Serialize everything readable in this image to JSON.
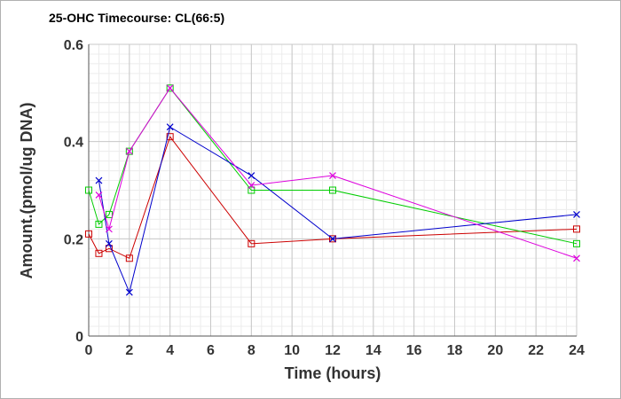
{
  "chart_data": {
    "type": "line",
    "title": "25-OHC Timecourse: CL(66:5)",
    "xlabel": "Time (hours)",
    "ylabel": "Amount.(pmol/ug DNA)",
    "xlim": [
      0,
      24
    ],
    "ylim": [
      0,
      0.6
    ],
    "xticks": [
      "0",
      "2",
      "4",
      "6",
      "8",
      "10",
      "12",
      "14",
      "16",
      "18",
      "20",
      "22",
      "24"
    ],
    "yticks": [
      "0",
      "0.2",
      "0.4",
      "0.6"
    ],
    "grid": true,
    "legend": "none",
    "series": [
      {
        "color": "#cc0000",
        "marker": "square",
        "points": [
          [
            0,
            0.21
          ],
          [
            0.5,
            0.17
          ],
          [
            1,
            0.18
          ],
          [
            2,
            0.16
          ],
          [
            4,
            0.41
          ],
          [
            8,
            0.19
          ],
          [
            12,
            0.2
          ],
          [
            24,
            0.22
          ]
        ]
      },
      {
        "color": "#00cc00",
        "marker": "square",
        "points": [
          [
            0,
            0.3
          ],
          [
            0.5,
            0.23
          ],
          [
            1,
            0.25
          ],
          [
            2,
            0.38
          ],
          [
            4,
            0.51
          ],
          [
            8,
            0.3
          ],
          [
            12,
            0.3
          ],
          [
            24,
            0.19
          ]
        ]
      },
      {
        "color": "#0000cc",
        "marker": "x",
        "points": [
          [
            0.5,
            0.32
          ],
          [
            1,
            0.19
          ],
          [
            2,
            0.09
          ],
          [
            4,
            0.43
          ],
          [
            8,
            0.33
          ],
          [
            12,
            0.2
          ],
          [
            24,
            0.25
          ]
        ]
      },
      {
        "color": "#dd00dd",
        "marker": "x",
        "points": [
          [
            0.5,
            0.29
          ],
          [
            1,
            0.22
          ],
          [
            2,
            0.38
          ],
          [
            4,
            0.51
          ],
          [
            8,
            0.31
          ],
          [
            12,
            0.33
          ],
          [
            24,
            0.16
          ]
        ]
      }
    ]
  }
}
